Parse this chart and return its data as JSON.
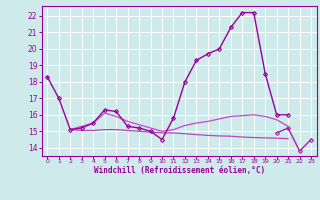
{
  "background_color": "#ceeaea",
  "grid_color": "#ffffff",
  "xlabel": "Windchill (Refroidissement éolien,°C)",
  "ylabel_ticks": [
    14,
    15,
    16,
    17,
    18,
    19,
    20,
    21,
    22
  ],
  "xtick_labels": [
    "0",
    "1",
    "2",
    "3",
    "4",
    "5",
    "6",
    "7",
    "8",
    "9",
    "10",
    "11",
    "12",
    "13",
    "14",
    "15",
    "16",
    "17",
    "18",
    "19",
    "20",
    "21",
    "22",
    "23"
  ],
  "xlim": [
    -0.5,
    23.5
  ],
  "ylim": [
    13.5,
    22.6
  ],
  "series": [
    {
      "x": [
        0,
        1,
        2,
        3,
        4,
        5,
        6,
        7,
        8,
        9,
        10,
        11,
        12,
        13,
        14,
        15,
        16,
        17,
        18,
        19,
        20,
        21
      ],
      "y": [
        18.3,
        17.0,
        15.1,
        15.2,
        15.5,
        16.3,
        16.2,
        15.3,
        15.2,
        15.0,
        14.5,
        15.8,
        18.0,
        19.3,
        19.7,
        20.0,
        21.3,
        22.2,
        22.2,
        18.5,
        16.0,
        16.0
      ],
      "color": "#990099",
      "linewidth": 1.0,
      "marker": "D",
      "markersize": 2.0
    },
    {
      "x": [
        2,
        3,
        4,
        5,
        6,
        7,
        8,
        9,
        10,
        11,
        12,
        13,
        14,
        15,
        16,
        17,
        18,
        19,
        20,
        21
      ],
      "y": [
        15.1,
        15.05,
        15.05,
        15.1,
        15.1,
        15.05,
        15.0,
        14.95,
        14.9,
        14.9,
        14.85,
        14.8,
        14.75,
        14.72,
        14.7,
        14.65,
        14.62,
        14.6,
        14.58,
        14.55
      ],
      "color": "#bb44bb",
      "linewidth": 0.9,
      "marker": null,
      "markersize": 0
    },
    {
      "x": [
        2,
        3,
        4,
        5,
        6,
        7,
        8,
        9,
        10,
        11,
        12,
        13,
        14,
        15,
        16,
        17,
        18,
        19,
        20,
        21
      ],
      "y": [
        15.1,
        15.3,
        15.5,
        16.1,
        15.9,
        15.6,
        15.4,
        15.2,
        15.0,
        15.1,
        15.35,
        15.5,
        15.6,
        15.75,
        15.9,
        15.95,
        16.0,
        15.9,
        15.7,
        15.3
      ],
      "color": "#cc44cc",
      "linewidth": 0.9,
      "marker": null,
      "markersize": 0
    },
    {
      "x": [
        20,
        21,
        22,
        23
      ],
      "y": [
        14.9,
        15.2,
        13.8,
        14.5
      ],
      "color": "#aa22aa",
      "linewidth": 1.0,
      "marker": "D",
      "markersize": 2.0
    }
  ]
}
